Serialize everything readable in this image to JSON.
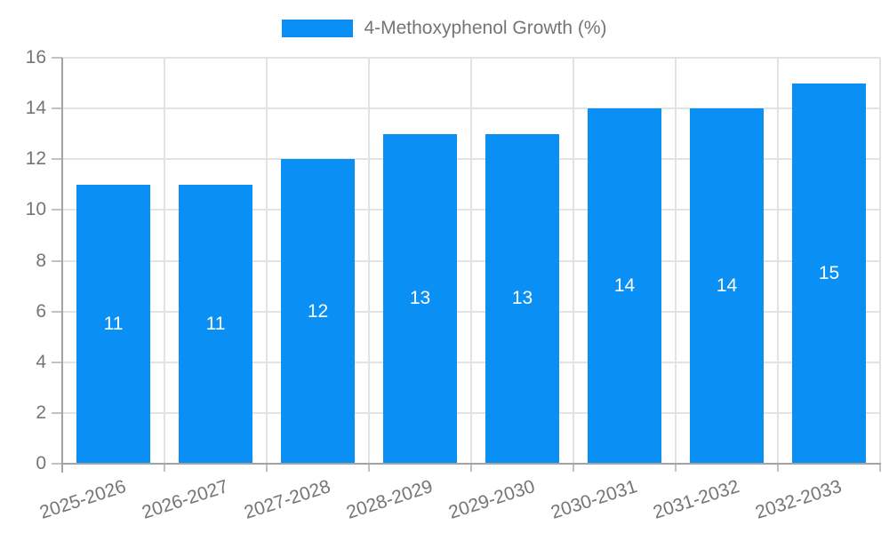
{
  "chart_data": {
    "type": "bar",
    "title": "",
    "legend": {
      "label": "4-Methoxyphenol Growth (%)",
      "position": "top"
    },
    "categories": [
      "2025-2026",
      "2026-2027",
      "2027-2028",
      "2028-2029",
      "2029-2030",
      "2030-2031",
      "2031-2032",
      "2032-2033"
    ],
    "values": [
      11,
      11,
      12,
      13,
      13,
      14,
      14,
      15
    ],
    "value_labels": [
      "11",
      "11",
      "12",
      "13",
      "13",
      "14",
      "14",
      "15"
    ],
    "ytick_labels": [
      "0",
      "2",
      "4",
      "6",
      "8",
      "10",
      "12",
      "14",
      "16"
    ],
    "ylim": [
      0,
      16
    ],
    "ytick_step": 2,
    "grid": true,
    "xlabel": "",
    "ylabel": "",
    "colors": {
      "bar": "#0A90F5",
      "bar_value_text": "#FFFFFF",
      "axis_text": "#757575",
      "grid_line": "#E3E3E3",
      "axis_line": "#A3A3A3",
      "tick_mark": "#C2C2C2"
    }
  }
}
